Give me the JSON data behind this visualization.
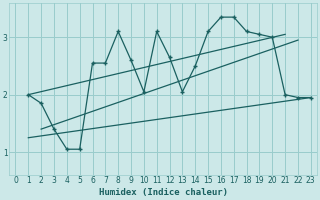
{
  "xlabel": "Humidex (Indice chaleur)",
  "x_ticks": [
    0,
    1,
    2,
    3,
    4,
    5,
    6,
    7,
    8,
    9,
    10,
    11,
    12,
    13,
    14,
    15,
    16,
    17,
    18,
    19,
    20,
    21,
    22,
    23
  ],
  "y_ticks": [
    1,
    2,
    3
  ],
  "xlim": [
    -0.5,
    23.5
  ],
  "ylim": [
    0.6,
    3.6
  ],
  "bg_color": "#cce8e8",
  "line_color": "#1a6060",
  "grid_color": "#99cccc",
  "series": {
    "main": {
      "x": [
        1,
        2,
        3,
        4,
        5,
        6,
        7,
        8,
        9,
        10,
        11,
        12,
        13,
        14,
        15,
        16,
        17,
        18,
        19,
        20,
        21,
        22,
        23
      ],
      "y": [
        2.0,
        1.85,
        1.4,
        1.05,
        1.05,
        2.55,
        2.55,
        3.1,
        2.6,
        2.05,
        3.1,
        2.65,
        2.05,
        2.5,
        3.1,
        3.35,
        3.35,
        3.1,
        3.05,
        3.0,
        2.0,
        1.95,
        1.95
      ]
    },
    "lower": {
      "x": [
        1,
        23
      ],
      "y": [
        1.25,
        1.95
      ]
    },
    "upper1": {
      "x": [
        1,
        21
      ],
      "y": [
        2.0,
        3.05
      ]
    },
    "upper2": {
      "x": [
        2,
        22
      ],
      "y": [
        1.4,
        2.95
      ]
    }
  },
  "markers": {
    "x": [
      1,
      3,
      5,
      7,
      9,
      10,
      11,
      13,
      14,
      15,
      16,
      17,
      18,
      19,
      20,
      21,
      22,
      23
    ],
    "y": [
      2.0,
      1.4,
      1.05,
      2.55,
      2.6,
      2.05,
      3.1,
      2.05,
      2.5,
      3.1,
      3.35,
      3.35,
      3.1,
      3.05,
      3.0,
      2.0,
      1.95,
      1.95
    ]
  }
}
